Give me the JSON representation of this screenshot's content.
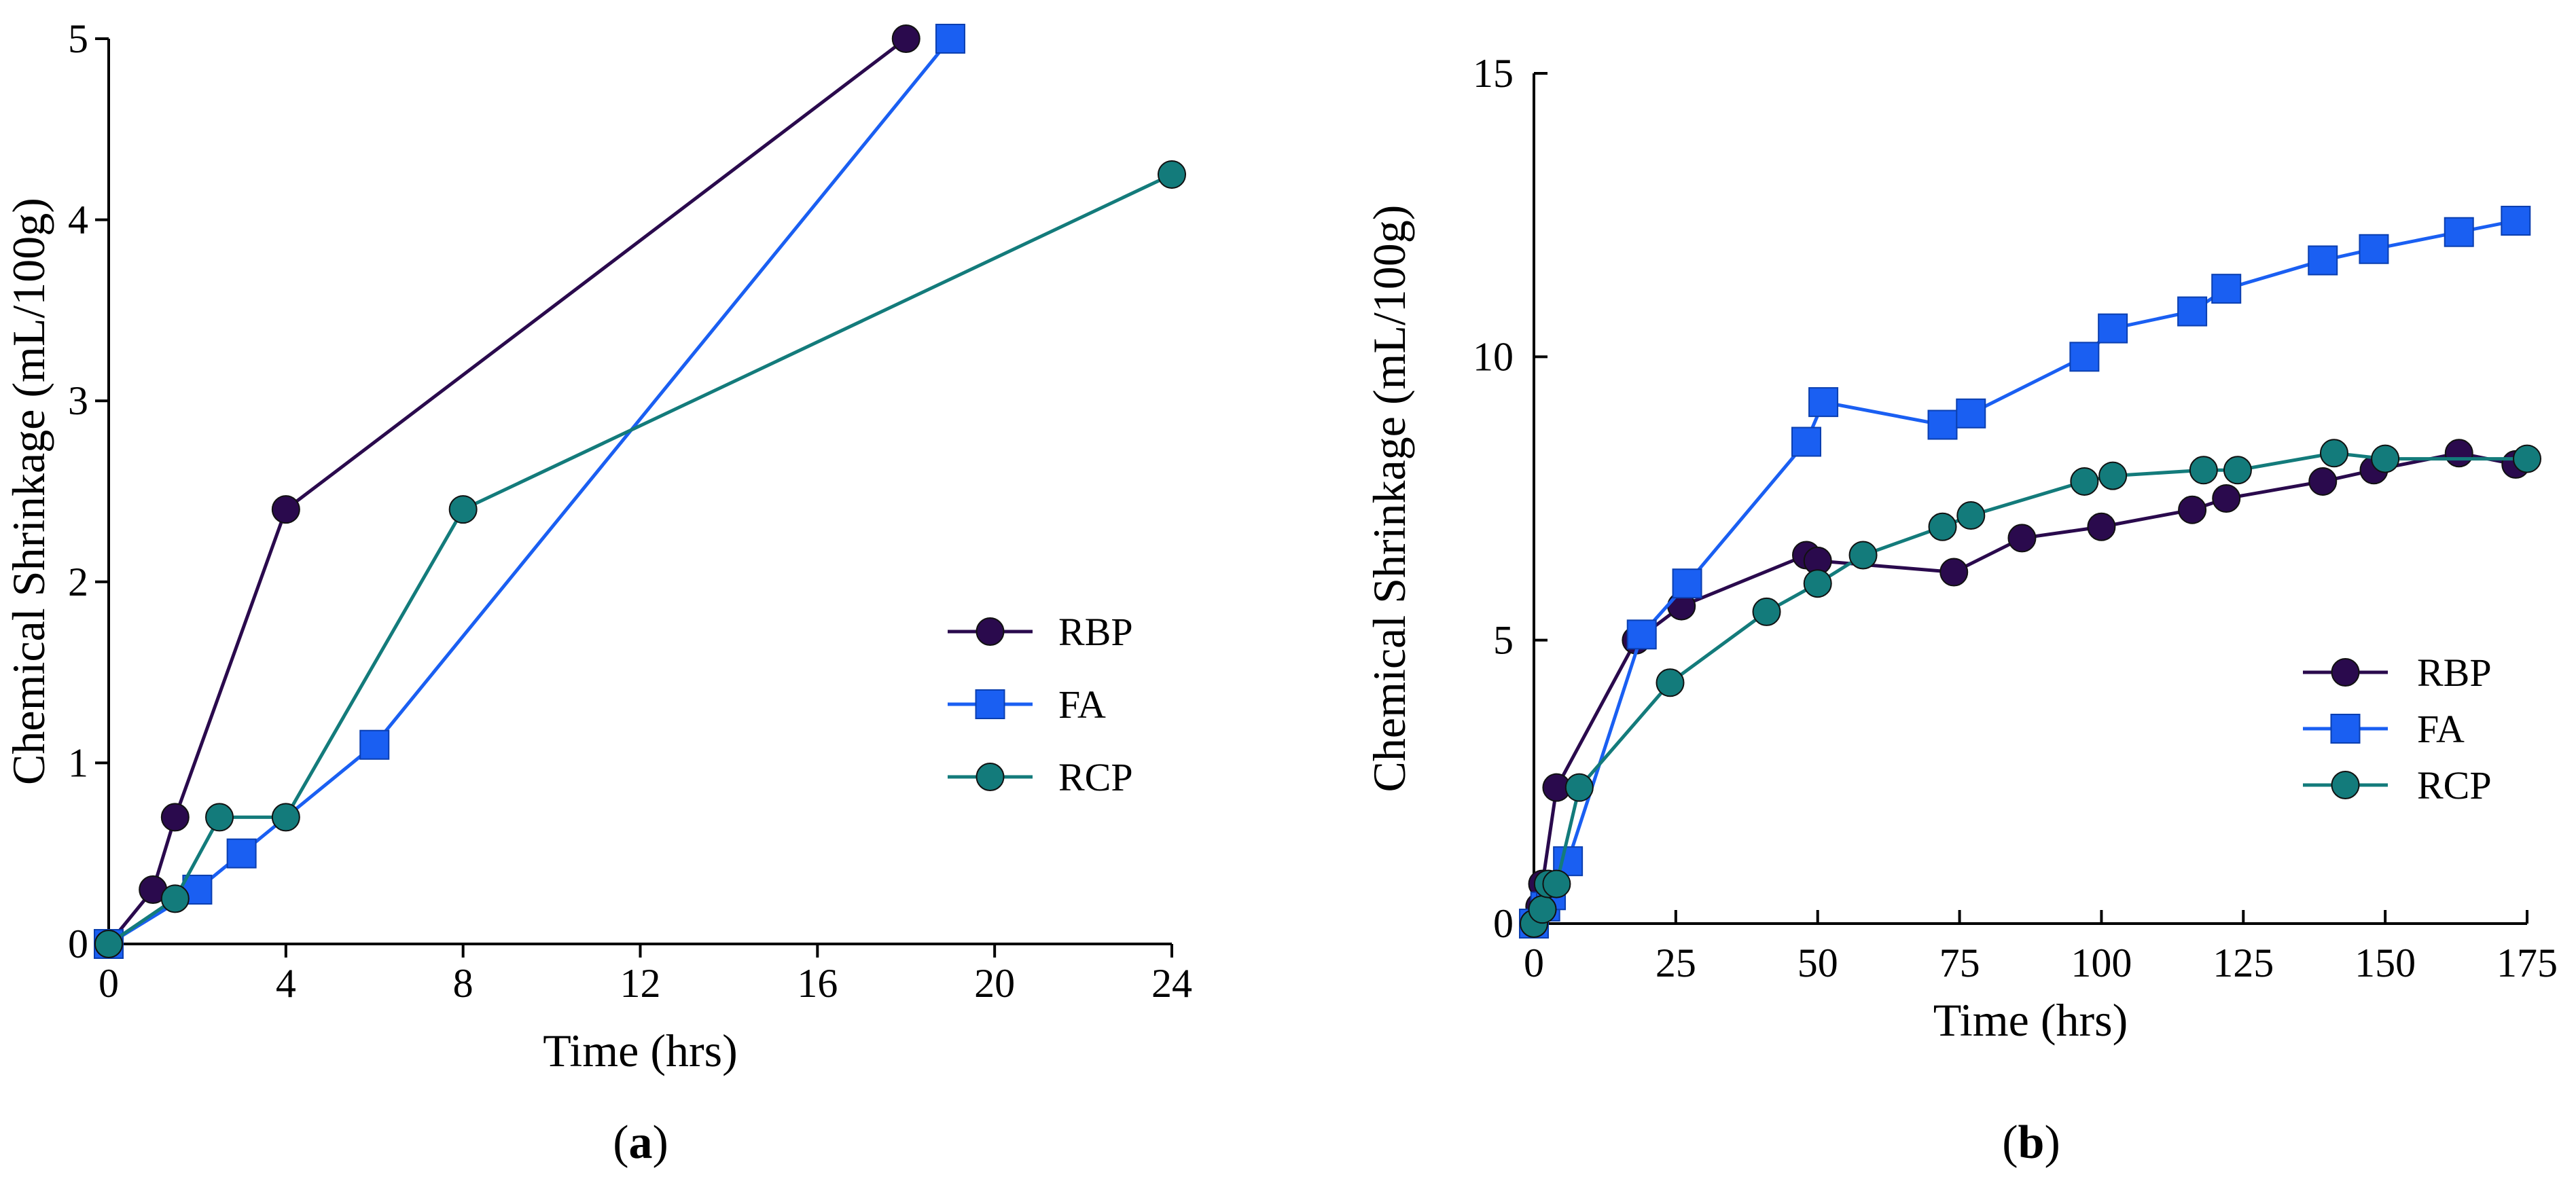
{
  "chart_data": [
    {
      "type": "line",
      "panel": "a",
      "caption_open": "(",
      "caption_letter": "a",
      "caption_close": ")",
      "xlabel": "Time (hrs)",
      "ylabel": "Chemical Shrinkage (mL/100g)",
      "xlim": [
        0,
        24
      ],
      "ylim": [
        0,
        5
      ],
      "xticks": [
        0,
        4,
        8,
        12,
        16,
        20,
        24
      ],
      "yticks": [
        0,
        1,
        2,
        3,
        4,
        5
      ],
      "legend_position": "center-right",
      "series": [
        {
          "name": "RBP",
          "color": "#2a0a4d",
          "marker": "circle",
          "x": [
            0,
            1,
            1.5,
            4,
            18
          ],
          "y": [
            0,
            0.3,
            0.7,
            2.4,
            5.0
          ]
        },
        {
          "name": "FA",
          "color": "#1a5ff2",
          "marker": "square",
          "x": [
            0,
            2,
            3,
            6,
            19
          ],
          "y": [
            0,
            0.3,
            0.5,
            1.1,
            5.0
          ]
        },
        {
          "name": "RCP",
          "color": "#137b7b",
          "marker": "circle",
          "x": [
            0,
            1.5,
            2.5,
            4,
            8,
            24
          ],
          "y": [
            0,
            0.25,
            0.7,
            0.7,
            2.4,
            4.25
          ]
        }
      ]
    },
    {
      "type": "line",
      "panel": "b",
      "caption_open": "(",
      "caption_letter": "b",
      "caption_close": ")",
      "xlabel": "Time (hrs)",
      "ylabel": "Chemical Shrinkage (mL/100g)",
      "xlim": [
        0,
        175
      ],
      "ylim": [
        0,
        15
      ],
      "xticks": [
        0,
        25,
        50,
        75,
        100,
        125,
        150,
        175
      ],
      "yticks": [
        0,
        5,
        10,
        15
      ],
      "legend_position": "lower-right",
      "series": [
        {
          "name": "RBP",
          "color": "#2a0a4d",
          "marker": "circle",
          "x": [
            0,
            1,
            1.5,
            4,
            18,
            26,
            48,
            50,
            74,
            86,
            100,
            116,
            122,
            139,
            148,
            163,
            173
          ],
          "y": [
            0,
            0.3,
            0.7,
            2.4,
            5.0,
            5.6,
            6.5,
            6.4,
            6.2,
            6.8,
            7.0,
            7.3,
            7.5,
            7.8,
            8.0,
            8.3,
            8.1
          ]
        },
        {
          "name": "FA",
          "color": "#1a5ff2",
          "marker": "square",
          "x": [
            0,
            2,
            3,
            6,
            19,
            27,
            48,
            51,
            72,
            77,
            97,
            102,
            116,
            122,
            139,
            148,
            163,
            173
          ],
          "y": [
            0,
            0.3,
            0.5,
            1.1,
            5.1,
            6.0,
            8.5,
            9.2,
            8.8,
            9.0,
            10.0,
            10.5,
            10.8,
            11.2,
            11.7,
            11.9,
            12.2,
            12.4
          ]
        },
        {
          "name": "RCP",
          "color": "#137b7b",
          "marker": "circle",
          "x": [
            0,
            1.5,
            2.5,
            4,
            8,
            24,
            41,
            50,
            58,
            72,
            77,
            97,
            102,
            118,
            124,
            141,
            150,
            175
          ],
          "y": [
            0,
            0.25,
            0.7,
            0.7,
            2.4,
            4.25,
            5.5,
            6.0,
            6.5,
            7.0,
            7.2,
            7.8,
            7.9,
            8.0,
            8.0,
            8.3,
            8.2,
            8.2
          ]
        }
      ]
    }
  ]
}
